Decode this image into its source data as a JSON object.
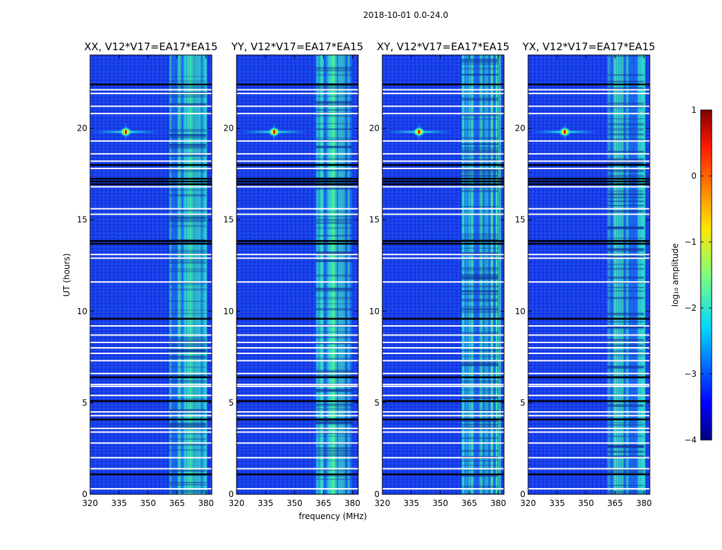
{
  "chart_data": {
    "type": "heatmap",
    "suptitle": "2018-10-01 0.0-24.0",
    "xlabel": "frequency (MHz)",
    "ylabel": "UT (hours)",
    "xlim": [
      320,
      383
    ],
    "ylim": [
      0,
      24
    ],
    "xticks": [
      320,
      335,
      350,
      365,
      380
    ],
    "yticks": [
      0,
      5,
      10,
      15,
      20
    ],
    "panels": [
      {
        "title": "XX, V12*V17=EA17*EA15",
        "source": {
          "freq_mhz": 338.5,
          "ut_hours": 19.8
        }
      },
      {
        "title": "YY, V12*V17=EA17*EA15",
        "source": {
          "freq_mhz": 339.5,
          "ut_hours": 19.8
        }
      },
      {
        "title": "XY, V12*V17=EA17*EA15",
        "source": {
          "freq_mhz": 339.0,
          "ut_hours": 19.8
        }
      },
      {
        "title": "YX, V12*V17=EA17*EA15",
        "source": {
          "freq_mhz": 339.0,
          "ut_hours": 19.8
        }
      }
    ],
    "rfi_band_mhz": [
      361,
      380
    ],
    "flagged_ut_white": [
      0.3,
      1.4,
      2.0,
      2.8,
      3.4,
      3.6,
      4.3,
      4.5,
      5.4,
      5.9,
      6.0,
      6.6,
      7.3,
      7.7,
      8.0,
      8.3,
      8.7,
      9.2,
      11.6,
      12.9,
      13.1,
      15.3,
      15.6,
      16.8,
      17.8,
      18.2,
      18.6,
      19.3,
      20.8,
      21.2,
      21.9,
      22.1
    ],
    "flagged_ut_black": [
      1.1,
      4.1,
      5.1,
      6.4,
      9.6,
      13.7,
      13.85,
      16.95,
      17.1,
      17.25,
      18.0,
      22.4
    ],
    "colorbar": {
      "label": "log₁₀ amplitude",
      "range": [
        -4,
        1
      ],
      "ticks": [
        "−4",
        "−3",
        "−2",
        "−1",
        "0",
        "1"
      ],
      "tick_values": [
        -4,
        -3,
        -2,
        -1,
        0,
        1
      ],
      "colormap": "jet",
      "background_level": -3.3,
      "rfi_level": -2.2,
      "source_peak_level": 0.5
    }
  }
}
